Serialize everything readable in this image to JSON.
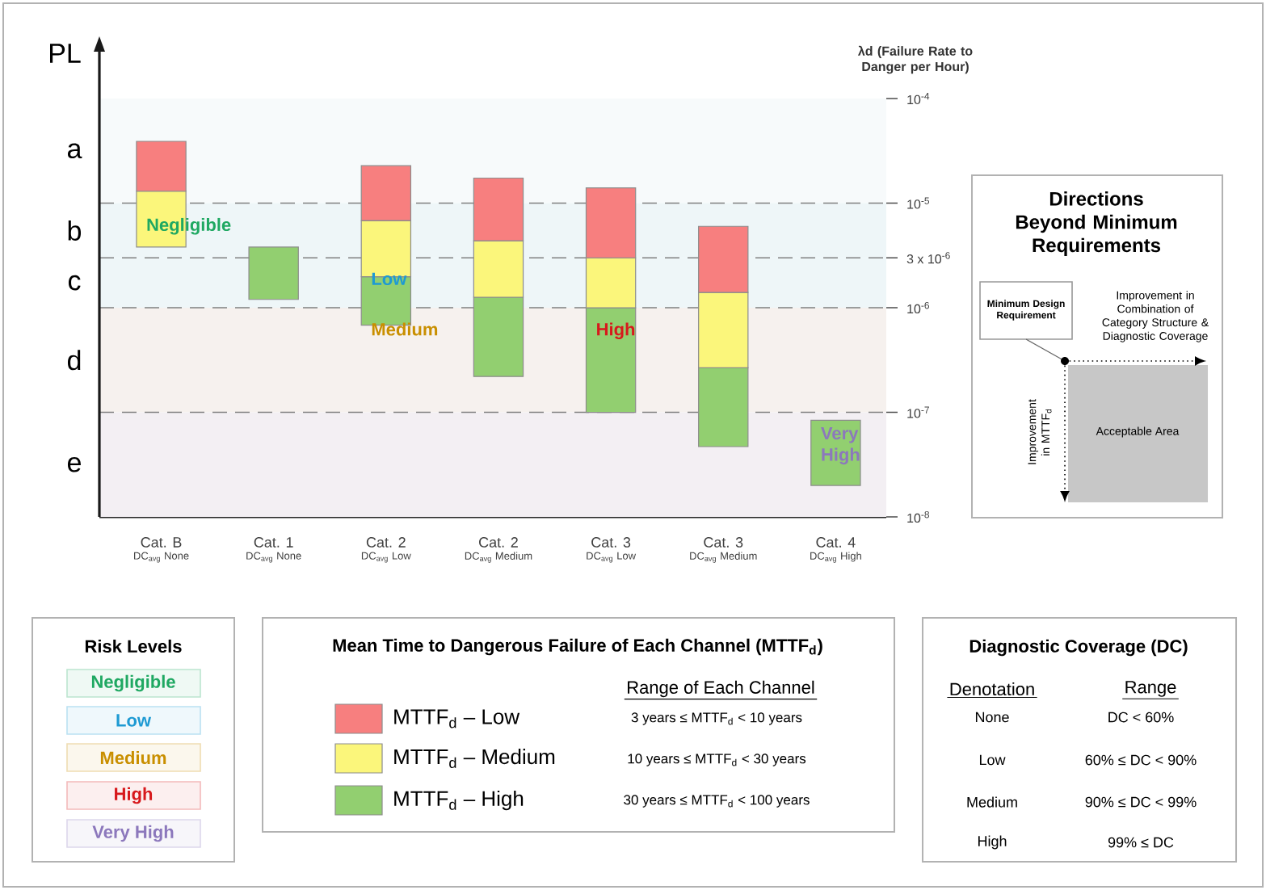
{
  "chart_data": {
    "type": "bar",
    "log": "y",
    "ylabel": "λd (Failure Rate to Danger per Hour)",
    "legend": "bottom",
    "legend_title": "Mean Time to Dangerous Failure of Each Channel (MTTF$_{d}$)",
    "categories": [
      "Cat. B",
      "Cat. 1",
      "Cat. 2",
      "Cat. 2",
      "Cat. 3",
      "Cat. 3",
      "Cat. 4"
    ],
    "series": [
      {
        "name": "MTTF$_{d}$ – High",
        "color": "#92cf70",
        "base": [
          null,
          1.2e-06,
          6.8e-07,
          2.2e-07,
          1e-07,
          4.7e-08,
          2e-08
        ],
        "values": [
          null,
          2.6e-06,
          1.3e-06,
          1.04e-06,
          9e-07,
          2.2e-07,
          6.4e-08
        ]
      },
      {
        "name": "MTTF$_{d}$ – Medium",
        "color": "#fbf67b",
        "base": [
          3.8e-06,
          null,
          1.98e-06,
          1.26e-06,
          1e-06,
          2.67e-07,
          null
        ],
        "values": [
          9.2e-06,
          null,
          4.8e-06,
          3.1e-06,
          2e-06,
          1.13e-06,
          null
        ]
      },
      {
        "name": "MTTF$_{d}$ – Low",
        "color": "#f77f7f",
        "base": [
          1.3e-05,
          null,
          6.8e-06,
          4.36e-06,
          3e-06,
          1.4e-06,
          null
        ],
        "values": [
          2.6e-05,
          null,
          1.6e-05,
          1.3e-05,
          1.1e-05,
          4.6e-06,
          null
        ]
      }
    ],
    "ylim": [
      1e-08,
      0.0001
    ],
    "yticks": [
      {
        "value": 1e-08,
        "label": "10$^{-8}$"
      },
      {
        "value": 1e-07,
        "label": "10$^{-7}$"
      },
      {
        "value": 1e-06,
        "label": "10$^{-6}$"
      },
      {
        "value": 3e-06,
        "label": "3 x 10$^{-6}$"
      },
      {
        "value": 1e-05,
        "label": "10$^{-5}$"
      },
      {
        "value": 0.0001,
        "label": "10$^{-4}$"
      }
    ],
    "ref_lines": [
      {
        "axis": "y",
        "value": 1e-05,
        "color": "#808080",
        "line_style": "dashed"
      },
      {
        "axis": "y",
        "value": 3e-06,
        "color": "#808080",
        "line_style": "dashed"
      },
      {
        "axis": "y",
        "value": 1e-06,
        "color": "#808080",
        "line_style": "dashed"
      },
      {
        "axis": "y",
        "value": 1e-07,
        "color": "#808080",
        "line_style": "dashed"
      }
    ],
    "bands": [
      {
        "axis": "y",
        "from": 1e-05,
        "to": 0.0001,
        "label": "a",
        "color": "#f7fafb"
      },
      {
        "axis": "y",
        "from": 3e-06,
        "to": 1e-05,
        "label": "b",
        "color": "#eef6f8"
      },
      {
        "axis": "y",
        "from": 1e-06,
        "to": 3e-06,
        "label": "c",
        "color": "#eef6f8"
      },
      {
        "axis": "y",
        "from": 1e-07,
        "to": 1e-06,
        "label": "d",
        "color": "#f6f1ee"
      },
      {
        "axis": "y",
        "from": 1e-08,
        "to": 1e-07,
        "label": "e",
        "color": "#f3eff3"
      }
    ],
    "annotations": [
      "PL",
      "DC$_{avg}$ None",
      "DC$_{avg}$ None",
      "DC$_{avg}$ Low",
      "DC$_{avg}$ Medium",
      "DC$_{avg}$ Low",
      "DC$_{avg}$ Medium",
      "DC$_{avg}$ High",
      {
        "text": "Negligible",
        "x": "Cat. B",
        "y": 1e-05
      },
      {
        "text": "Low",
        "x": "Cat. 2",
        "y": 3e-06
      },
      {
        "text": "Medium",
        "x": "Cat. 2",
        "y": 1e-06
      },
      {
        "text": "High",
        "x": "Cat. 3",
        "y": 1e-06
      },
      {
        "text": "Very High",
        "x": "Cat. 4",
        "y": 1e-07
      },
      "Risk Levels",
      "Negligible",
      "Low",
      "Medium",
      "High",
      "Very High",
      "Range of Each Channel",
      "3 years ≤ MTTF$_{d}$ < 10 years",
      "10 years ≤ MTTF$_{d}$ < 30 years",
      "30 years ≤ MTTF$_{d}$ < 100 years",
      "Diagnostic Coverage (DC)",
      "Denotation",
      "Range",
      "None",
      "DC < 60%",
      "Low",
      "60% ≤ DC < 90%",
      "Medium",
      "90% ≤ DC < 99%",
      "High",
      "99% ≤ DC",
      "Directions Beyond Minimum Requirements",
      "Minimum Design Requirement",
      "Improvement in Combination of Category Structure & Diagnostic Coverage",
      "Improvement in MTTF$_{d}$",
      "Acceptable Area"
    ]
  }
}
